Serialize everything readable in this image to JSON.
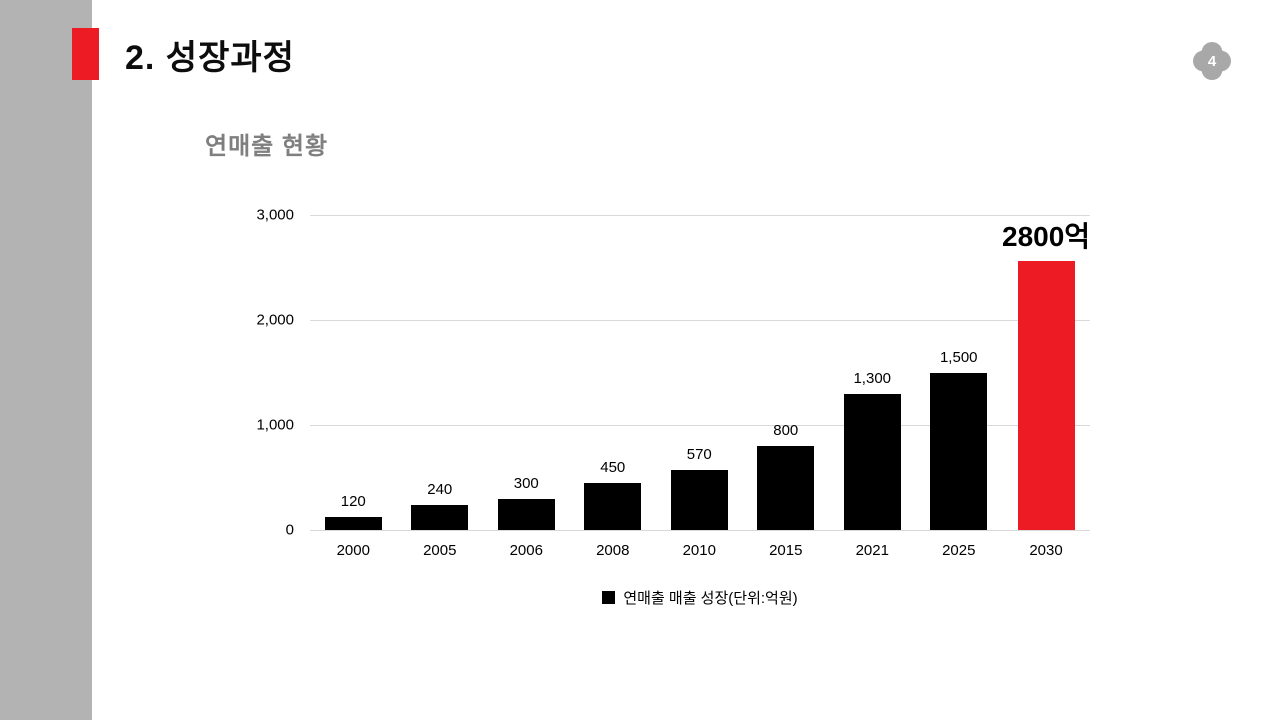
{
  "slide": {
    "title": "2. 성장과정",
    "page_number": "4",
    "subtitle": "연매출 현황"
  },
  "chart_data": {
    "type": "bar",
    "title": "연매출 현황",
    "categories": [
      "2000",
      "2005",
      "2006",
      "2008",
      "2010",
      "2015",
      "2021",
      "2025",
      "2030"
    ],
    "values": [
      120,
      240,
      300,
      450,
      570,
      800,
      1300,
      1500,
      2800
    ],
    "value_labels": [
      "120",
      "240",
      "300",
      "450",
      "570",
      "800",
      "1,300",
      "1,500",
      "2800억"
    ],
    "highlight_index": 8,
    "bar_color": "#000000",
    "bar_highlight_color": "#ed1c24",
    "ylim": [
      0,
      3000
    ],
    "yticks": [
      0,
      1000,
      2000,
      3000
    ],
    "ytick_labels": [
      "0",
      "1,000",
      "2,000",
      "3,000"
    ],
    "legend_label": "연매출 매출 성장(단위:억원)",
    "legend_position": "bottom",
    "grid": true,
    "xlabel": "",
    "ylabel": ""
  },
  "colors": {
    "accent_red": "#ed1c24",
    "sidebar_gray": "#b3b3b3",
    "badge_gray": "#a8a8a8",
    "subtitle_gray": "#7f7f7f",
    "gridline_gray": "#d9d9d9",
    "bar_black": "#000000"
  }
}
